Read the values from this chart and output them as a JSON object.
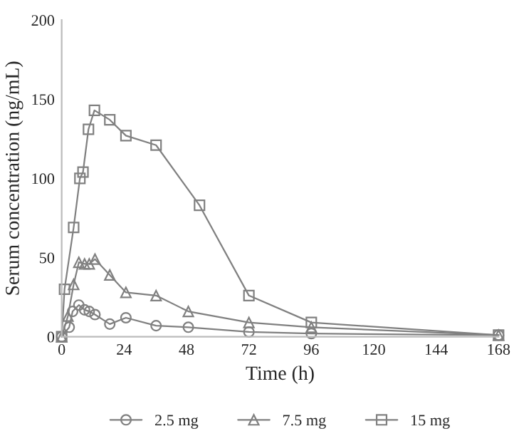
{
  "chart_data": {
    "type": "line",
    "xlabel": "Time (h)",
    "ylabel": "Serum concentration (ng/mL)",
    "xlim": [
      0,
      168
    ],
    "xticks": [
      0,
      24,
      48,
      72,
      96,
      120,
      144,
      168
    ],
    "ylim": [
      0,
      200
    ],
    "yticks": [
      0,
      50,
      100,
      150,
      200
    ],
    "grid": false,
    "legend": "bottom",
    "series": [
      {
        "name": "2.5 mg",
        "color": "#808080",
        "marker": "circle",
        "x": [
          0,
          2.9,
          4.2,
          6.6,
          8.8,
          10.6,
          12.8,
          18.5,
          24.7,
          36.3,
          48.7,
          72,
          96,
          168
        ],
        "values": [
          0,
          6,
          16,
          20,
          17,
          16,
          14,
          8,
          12,
          7,
          6,
          3,
          2,
          1
        ]
      },
      {
        "name": "7.5 mg",
        "color": "#808080",
        "marker": "triangle",
        "x": [
          0,
          2.4,
          4.6,
          6.6,
          8.8,
          10.6,
          12.8,
          18.5,
          24.7,
          36.3,
          48.7,
          72,
          96,
          168
        ],
        "values": [
          0,
          13,
          33,
          47,
          46,
          46,
          49,
          39,
          28,
          26,
          16,
          9,
          6,
          1
        ]
      },
      {
        "name": "15 mg",
        "color": "#808080",
        "marker": "square",
        "x": [
          0,
          1.1,
          4.6,
          7,
          8.2,
          10.3,
          12.6,
          18.5,
          24.7,
          36.3,
          53,
          72,
          96,
          168
        ],
        "values": [
          0,
          30,
          69,
          100,
          104,
          131,
          143,
          137,
          127,
          121,
          83,
          26,
          9,
          1
        ]
      }
    ]
  }
}
